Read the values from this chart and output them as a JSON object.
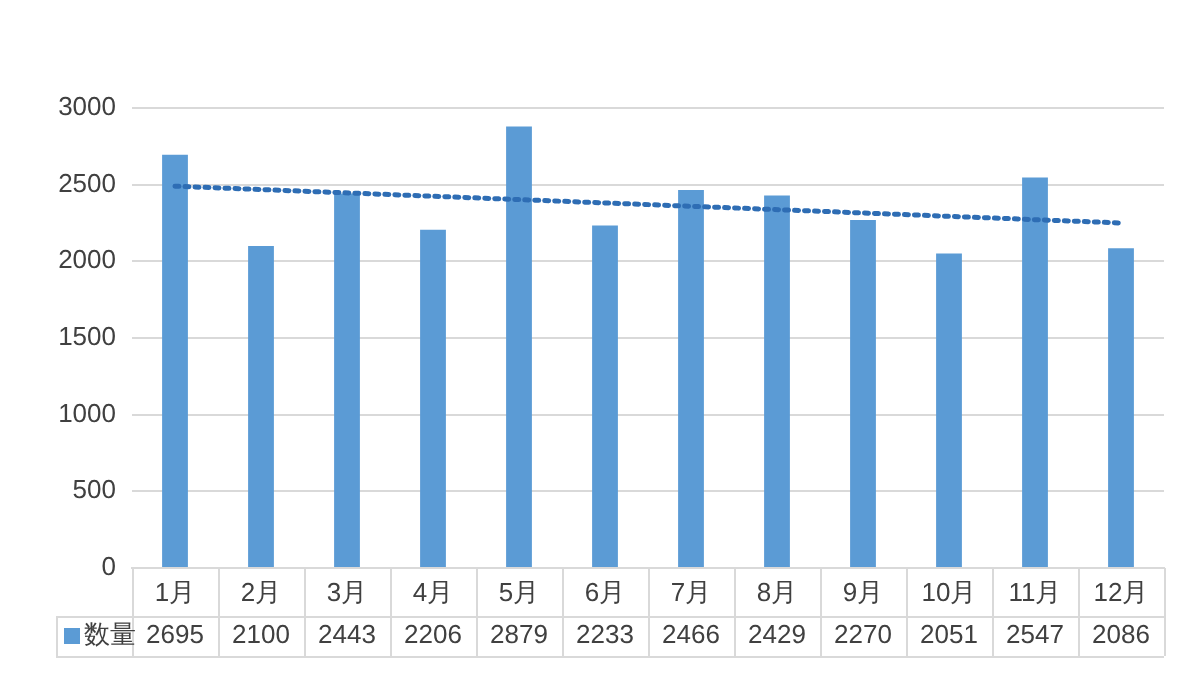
{
  "chart_data": {
    "type": "bar",
    "categories": [
      "1月",
      "2月",
      "3月",
      "4月",
      "5月",
      "6月",
      "7月",
      "8月",
      "9月",
      "10月",
      "11月",
      "12月"
    ],
    "series": [
      {
        "name": "数量",
        "color": "#5b9bd5",
        "values": [
          2695,
          2100,
          2443,
          2206,
          2879,
          2233,
          2466,
          2429,
          2270,
          2051,
          2547,
          2086
        ],
        "value_labels": [
          "2695",
          "2100",
          "2443",
          "2206",
          "2879",
          "2233",
          "2466",
          "2429",
          "2270",
          "2051",
          "2547",
          "2086"
        ]
      },
      {
        "type": "line",
        "color": "#2e6db4",
        "x": [
          "1月",
          "12月"
        ],
        "values": [
          2490,
          2250
        ],
        "line_style": "dotted",
        "marker": "none"
      }
    ],
    "ylim": [
      0,
      3000
    ],
    "yticks": [
      0,
      500,
      1000,
      1500,
      2000,
      2500,
      3000
    ],
    "grid": "y",
    "legend": "bottom"
  }
}
